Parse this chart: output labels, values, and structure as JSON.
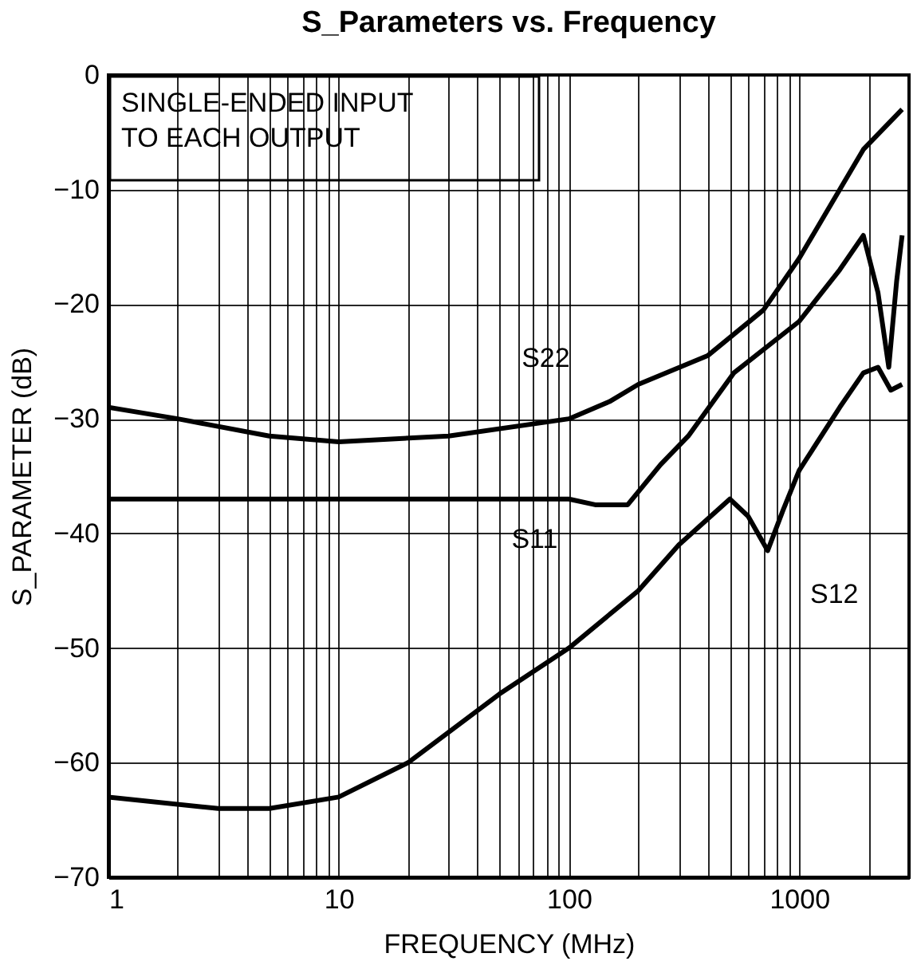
{
  "chart_data": {
    "type": "line",
    "title": "S_Parameters vs. Frequency",
    "xlabel": "FREQUENCY (MHz)",
    "ylabel": "S_PARAMETER (dB)",
    "log": "x",
    "grid": true,
    "legend": false,
    "marker": "none",
    "line_style": "solid",
    "xlim": [
      1,
      3000
    ],
    "ylim": [
      -70,
      0
    ],
    "xticks": [
      1,
      {
        "value": 2,
        "label": null
      },
      {
        "value": 3,
        "label": null
      },
      {
        "value": 4,
        "label": null
      },
      {
        "value": 5,
        "label": null
      },
      {
        "value": 6,
        "label": null
      },
      {
        "value": 7,
        "label": null
      },
      {
        "value": 8,
        "label": null
      },
      {
        "value": 9,
        "label": null
      },
      10,
      {
        "value": 20,
        "label": null
      },
      {
        "value": 30,
        "label": null
      },
      {
        "value": 40,
        "label": null
      },
      {
        "value": 50,
        "label": null
      },
      {
        "value": 60,
        "label": null
      },
      {
        "value": 70,
        "label": null
      },
      {
        "value": 80,
        "label": null
      },
      {
        "value": 90,
        "label": null
      },
      100,
      {
        "value": 200,
        "label": null
      },
      {
        "value": 300,
        "label": null
      },
      {
        "value": 400,
        "label": null
      },
      {
        "value": 500,
        "label": null
      },
      {
        "value": 600,
        "label": null
      },
      {
        "value": 700,
        "label": null
      },
      {
        "value": 800,
        "label": null
      },
      {
        "value": 900,
        "label": null
      },
      1000,
      {
        "value": 2000,
        "label": null
      }
    ],
    "yticks": [
      -70,
      -60,
      -50,
      -40,
      -30,
      -20,
      -10,
      0
    ],
    "series": [
      {
        "color": "#000000",
        "x": [
          1,
          2,
          5,
          10,
          30,
          100,
          150,
          200,
          400,
          700,
          1000,
          1500,
          1900,
          2800
        ],
        "values": [
          -29,
          -30,
          -31.5,
          -32,
          -31.5,
          -30,
          -28.5,
          -27,
          -24.5,
          -20.5,
          -16,
          -10,
          -6.5,
          -3
        ]
      },
      {
        "color": "#000000",
        "x": [
          1,
          10,
          100,
          130,
          180,
          250,
          330,
          520,
          1000,
          1500,
          1900,
          2200,
          2450,
          2650,
          2800
        ],
        "values": [
          -37,
          -37,
          -37,
          -37.5,
          -37.5,
          -34,
          -31.5,
          -26,
          -21.5,
          -17,
          -14,
          -19,
          -25.5,
          -18,
          -14
        ]
      },
      {
        "color": "#000000",
        "x": [
          1,
          3,
          5,
          10,
          20,
          50,
          100,
          200,
          300,
          500,
          600,
          730,
          850,
          1000,
          1500,
          1900,
          2200,
          2500,
          2800
        ],
        "values": [
          -63,
          -64,
          -64,
          -63,
          -60,
          -54,
          -50,
          -45,
          -41,
          -37,
          -38.5,
          -41.5,
          -38,
          -34.5,
          -29,
          -26,
          -25.5,
          -27.5,
          -27
        ]
      }
    ],
    "annotations": [
      {
        "text": "S22",
        "x": 200,
        "y": -27
      },
      {
        "text": "S11",
        "x": 130,
        "y": -37.5
      },
      {
        "text": "S12",
        "x": 800,
        "y": -41.5
      },
      "SINGLE-ENDED INPUT\nTO EACH OUTPUT"
    ]
  }
}
